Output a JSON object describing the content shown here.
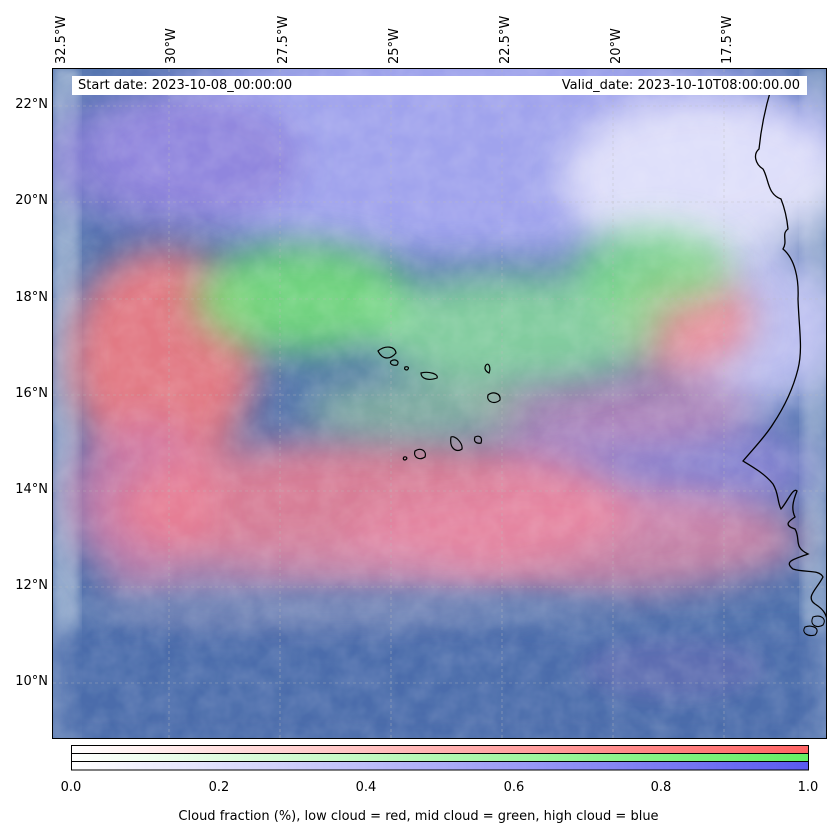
{
  "map": {
    "lon_labels": [
      "32.5°W",
      "30°W",
      "27.5°W",
      "25°W",
      "22.5°W",
      "20°W",
      "17.5°W"
    ],
    "lat_labels": [
      "22°N",
      "20°N",
      "18°N",
      "16°N",
      "14°N",
      "12°N",
      "10°N"
    ],
    "start_date": "Start date: 2023-10-08_00:00:00",
    "valid_date": "Valid_date: 2023-10-10T08:00:00.00",
    "layers": [
      "low cloud",
      "mid cloud",
      "high cloud"
    ],
    "colors": {
      "low": "#ff7070",
      "mid": "#70ee70",
      "high": "#6a6af0",
      "background": "#4e6fae"
    }
  },
  "colorbar": {
    "ticks": [
      "0.0",
      "0.2",
      "0.4",
      "0.6",
      "0.8",
      "1.0"
    ],
    "label": "Cloud fraction (%), low cloud = red, mid cloud = green, high cloud = blue",
    "range": [
      0,
      1
    ]
  }
}
